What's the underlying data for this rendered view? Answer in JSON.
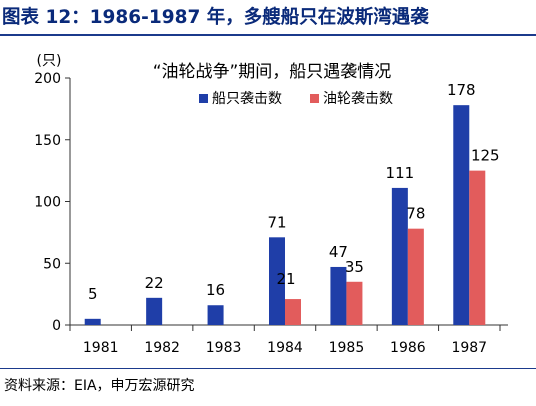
{
  "header": {
    "title": "图表 12：1986-1987 年，多艘船只在波斯湾遇袭"
  },
  "footer": {
    "source": "资料来源：EIA，申万宏源研究"
  },
  "colors": {
    "title": "#0a2a7a",
    "series1": "#1f3ea8",
    "series2": "#e25c5c",
    "axis": "#333333"
  },
  "chart_data": {
    "type": "bar",
    "title": "“油轮战争”期间，船只遇袭情况",
    "ylabel": "(只)",
    "xlabel": "",
    "ylim": [
      0,
      200
    ],
    "yticks": [
      0,
      50,
      100,
      150,
      200
    ],
    "categories": [
      "1981",
      "1982",
      "1983",
      "1984",
      "1985",
      "1986",
      "1987"
    ],
    "legend_position": "top-right",
    "grid": false,
    "series": [
      {
        "name": "船只袭击数",
        "values": [
          5,
          22,
          16,
          71,
          47,
          111,
          178
        ],
        "labels": [
          "5",
          "22",
          "16",
          "71",
          "47",
          "111",
          "178"
        ]
      },
      {
        "name": "油轮袭击数",
        "values": [
          null,
          null,
          null,
          21,
          35,
          78,
          125
        ],
        "labels": [
          "",
          "",
          "",
          "21",
          "35",
          "78",
          "125"
        ]
      }
    ]
  }
}
